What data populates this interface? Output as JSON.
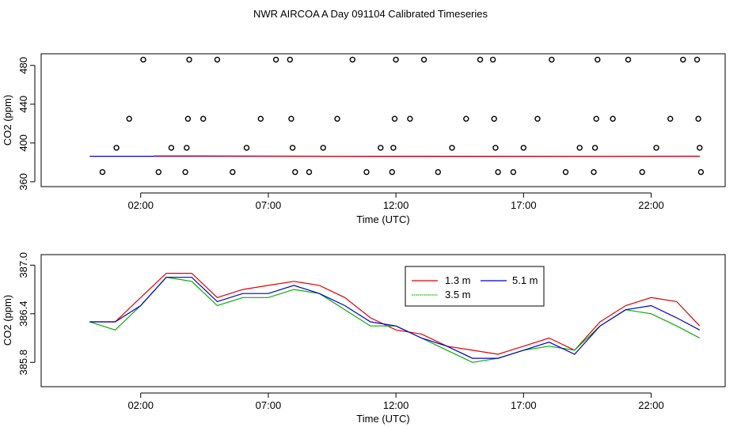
{
  "title": "NWR AIRCOA A  Day 091104  Calibrated Timeseries",
  "colors": {
    "h13": "#e00000",
    "h35": "#00b000",
    "h51": "#0000cc",
    "axis": "#000000"
  },
  "chart_data": [
    {
      "type": "scatter",
      "xlabel": "Time (UTC)",
      "ylabel": "CO2 (ppm)",
      "xlim": [
        -1.9,
        24.9
      ],
      "ylim": [
        355,
        492
      ],
      "xticks": [
        2,
        7,
        12,
        17,
        22
      ],
      "xtick_labels": [
        "02:00",
        "07:00",
        "12:00",
        "17:00",
        "22:00"
      ],
      "yticks": [
        360,
        400,
        440,
        480
      ],
      "ytick_labels": [
        "360",
        "400",
        "440",
        "480"
      ],
      "points": [
        {
          "x": 0.5,
          "y": 370
        },
        {
          "x": 1.05,
          "y": 395
        },
        {
          "x": 1.55,
          "y": 425
        },
        {
          "x": 2.1,
          "y": 486
        },
        {
          "x": 2.7,
          "y": 370
        },
        {
          "x": 3.2,
          "y": 395
        },
        {
          "x": 3.75,
          "y": 370
        },
        {
          "x": 3.8,
          "y": 395
        },
        {
          "x": 3.85,
          "y": 425
        },
        {
          "x": 3.9,
          "y": 486
        },
        {
          "x": 4.45,
          "y": 425
        },
        {
          "x": 5.0,
          "y": 486
        },
        {
          "x": 5.6,
          "y": 370
        },
        {
          "x": 6.15,
          "y": 395
        },
        {
          "x": 6.7,
          "y": 425
        },
        {
          "x": 7.3,
          "y": 486
        },
        {
          "x": 7.85,
          "y": 486
        },
        {
          "x": 7.9,
          "y": 425
        },
        {
          "x": 7.95,
          "y": 395
        },
        {
          "x": 8.05,
          "y": 370
        },
        {
          "x": 8.6,
          "y": 370
        },
        {
          "x": 9.15,
          "y": 395
        },
        {
          "x": 9.7,
          "y": 425
        },
        {
          "x": 10.3,
          "y": 486
        },
        {
          "x": 10.85,
          "y": 370
        },
        {
          "x": 11.4,
          "y": 395
        },
        {
          "x": 11.85,
          "y": 370
        },
        {
          "x": 11.9,
          "y": 395
        },
        {
          "x": 11.95,
          "y": 425
        },
        {
          "x": 12.0,
          "y": 486
        },
        {
          "x": 12.55,
          "y": 425
        },
        {
          "x": 13.1,
          "y": 486
        },
        {
          "x": 13.65,
          "y": 370
        },
        {
          "x": 14.2,
          "y": 395
        },
        {
          "x": 14.75,
          "y": 425
        },
        {
          "x": 15.3,
          "y": 486
        },
        {
          "x": 15.8,
          "y": 486
        },
        {
          "x": 15.85,
          "y": 425
        },
        {
          "x": 15.9,
          "y": 395
        },
        {
          "x": 16.0,
          "y": 370
        },
        {
          "x": 16.6,
          "y": 370
        },
        {
          "x": 17.0,
          "y": 395
        },
        {
          "x": 17.55,
          "y": 425
        },
        {
          "x": 18.1,
          "y": 486
        },
        {
          "x": 18.65,
          "y": 370
        },
        {
          "x": 19.2,
          "y": 395
        },
        {
          "x": 19.75,
          "y": 370
        },
        {
          "x": 19.8,
          "y": 395
        },
        {
          "x": 19.85,
          "y": 425
        },
        {
          "x": 19.9,
          "y": 486
        },
        {
          "x": 20.5,
          "y": 425
        },
        {
          "x": 21.1,
          "y": 486
        },
        {
          "x": 21.65,
          "y": 370
        },
        {
          "x": 22.2,
          "y": 395
        },
        {
          "x": 22.75,
          "y": 425
        },
        {
          "x": 23.25,
          "y": 486
        },
        {
          "x": 23.8,
          "y": 486
        },
        {
          "x": 23.85,
          "y": 425
        },
        {
          "x": 23.9,
          "y": 395
        },
        {
          "x": 23.95,
          "y": 370
        }
      ],
      "lines": [
        {
          "name": "5.1 m",
          "color": "#0000cc",
          "x": [
            0.0,
            23.9
          ],
          "y": [
            386.3,
            386.3
          ]
        },
        {
          "name": "1.3 m",
          "color": "#e00000",
          "x": [
            2.5,
            4.5,
            13.0,
            23.9
          ],
          "y": [
            386.6,
            386.6,
            386.1,
            386.4
          ]
        }
      ]
    },
    {
      "type": "line",
      "xlabel": "Time (UTC)",
      "ylabel": "CO2 (ppm)",
      "xlim": [
        -1.9,
        24.9
      ],
      "ylim": [
        385.5,
        387.13
      ],
      "xticks": [
        2,
        7,
        12,
        17,
        22
      ],
      "xtick_labels": [
        "02:00",
        "07:00",
        "12:00",
        "17:00",
        "22:00"
      ],
      "yticks": [
        385.8,
        386.4,
        387.0
      ],
      "ytick_labels": [
        "385.8",
        "386.4",
        "387.0"
      ],
      "legend": {
        "position": "top-right",
        "entries": [
          "1.3 m",
          "3.5 m",
          "5.1 m"
        ]
      },
      "x": [
        0,
        1,
        2,
        3,
        4,
        5,
        6,
        7,
        8,
        9,
        10,
        11,
        12,
        13,
        14,
        15,
        16,
        17,
        18,
        19,
        20,
        21,
        22,
        23,
        23.9
      ],
      "series": [
        {
          "name": "1.3 m",
          "color": "#e00000",
          "values": [
            386.3,
            386.3,
            386.6,
            386.9,
            386.9,
            386.6,
            386.7,
            386.75,
            386.8,
            386.75,
            386.6,
            386.35,
            386.2,
            386.15,
            386.0,
            385.95,
            385.9,
            386.0,
            386.1,
            385.95,
            386.3,
            386.5,
            386.6,
            386.55,
            386.25
          ]
        },
        {
          "name": "3.5 m",
          "color": "#00b000",
          "values": [
            386.3,
            386.2,
            386.5,
            386.85,
            386.8,
            386.5,
            386.6,
            386.6,
            386.7,
            386.65,
            386.45,
            386.25,
            386.25,
            386.1,
            385.95,
            385.8,
            385.85,
            385.95,
            386.0,
            385.95,
            386.25,
            386.45,
            386.4,
            386.25,
            386.1
          ]
        },
        {
          "name": "5.1 m",
          "color": "#0000cc",
          "values": [
            386.3,
            386.3,
            386.5,
            386.85,
            386.85,
            386.55,
            386.65,
            386.65,
            386.75,
            386.65,
            386.5,
            386.3,
            386.25,
            386.1,
            386.0,
            385.85,
            385.85,
            385.95,
            386.05,
            385.9,
            386.25,
            386.45,
            386.5,
            386.35,
            386.2
          ]
        }
      ]
    }
  ]
}
